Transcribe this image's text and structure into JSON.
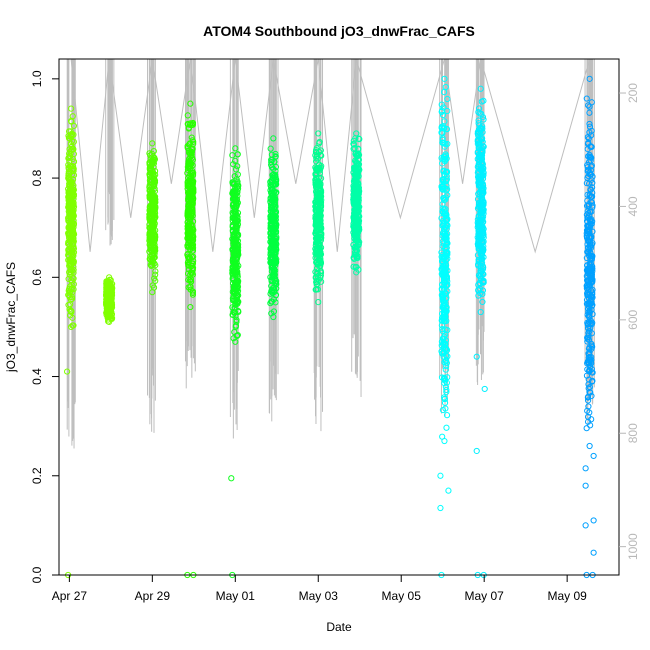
{
  "chart_data": {
    "type": "scatter",
    "title": "ATOM4 Southbound jO3_dnwFrac_CAFS",
    "xlabel": "Date",
    "ylabel": "jO3_dnwFrac_CAFS",
    "x_ticks": [
      "Apr 27",
      "Apr 29",
      "May 01",
      "May 03",
      "May 05",
      "May 07",
      "May 09"
    ],
    "y_ticks": [
      "0.0",
      "0.2",
      "0.4",
      "0.6",
      "0.8",
      "1.0"
    ],
    "y_right_ticks": [
      "200",
      "400",
      "600",
      "800",
      "1000"
    ],
    "xlim": [
      "2018-04-26T18:00",
      "2018-05-10T06:00"
    ],
    "ylim": [
      0,
      1.04
    ],
    "y_right_lim": [
      1050,
      140
    ],
    "y_right_reversed": true,
    "grid": false,
    "series": [
      {
        "date": "2018-04-27T01:00",
        "color": "#80ff00",
        "y_min": 0.5,
        "y_max": 0.94,
        "zero": [
          0.0
        ],
        "outliers": [
          0.41
        ],
        "alt_min": 850,
        "alt_max": 140
      },
      {
        "date": "2018-04-27T23:00",
        "color": "#80ff00",
        "y_min": 0.51,
        "y_max": 0.6,
        "zero": [],
        "outliers": [],
        "alt_min": 480,
        "alt_max": 140
      },
      {
        "date": "2018-04-29T00:00",
        "color": "#52ff00",
        "y_min": 0.57,
        "y_max": 0.87,
        "zero": [],
        "outliers": [],
        "alt_min": 800,
        "alt_max": 140
      },
      {
        "date": "2018-04-29T22:00",
        "color": "#29ff00",
        "y_min": 0.54,
        "y_max": 0.95,
        "zero": [
          0.0,
          0.0
        ],
        "outliers": [],
        "alt_min": 750,
        "alt_max": 140
      },
      {
        "date": "2018-05-01T00:00",
        "color": "#10ff20",
        "y_min": 0.47,
        "y_max": 0.86,
        "zero": [
          0.0
        ],
        "outliers": [
          0.195
        ],
        "alt_min": 810,
        "alt_max": 140
      },
      {
        "date": "2018-05-01T22:00",
        "color": "#00ff40",
        "y_min": 0.52,
        "y_max": 0.88,
        "zero": [],
        "outliers": [],
        "alt_min": 780,
        "alt_max": 140
      },
      {
        "date": "2018-05-03T00:00",
        "color": "#00ff90",
        "y_min": 0.55,
        "y_max": 0.89,
        "zero": [],
        "outliers": [],
        "alt_min": 800,
        "alt_max": 140
      },
      {
        "date": "2018-05-03T22:00",
        "color": "#00ffa8",
        "y_min": 0.61,
        "y_max": 0.89,
        "zero": [],
        "outliers": [],
        "alt_min": 740,
        "alt_max": 140
      },
      {
        "date": "2018-05-06T01:00",
        "color": "#00ffff",
        "y_min": 0.27,
        "y_max": 1.0,
        "zero": [
          0.0
        ],
        "outliers": [
          0.2,
          0.17,
          0.135
        ],
        "alt_min": 780,
        "alt_max": 140
      },
      {
        "date": "2018-05-06T22:00",
        "color": "#00f0ff",
        "y_min": 0.53,
        "y_max": 0.98,
        "zero": [
          0.0,
          0.0
        ],
        "outliers": [
          0.44,
          0.375,
          0.25
        ],
        "alt_min": 720,
        "alt_max": 140
      },
      {
        "date": "2018-05-09T13:00",
        "color": "#00a0ff",
        "y_min": 0.26,
        "y_max": 1.0,
        "zero": [
          0.0,
          0.0
        ],
        "outliers": [
          0.18,
          0.11,
          0.1,
          0.045,
          0.215,
          0.24
        ],
        "alt_min": 800,
        "alt_max": 140
      }
    ]
  }
}
